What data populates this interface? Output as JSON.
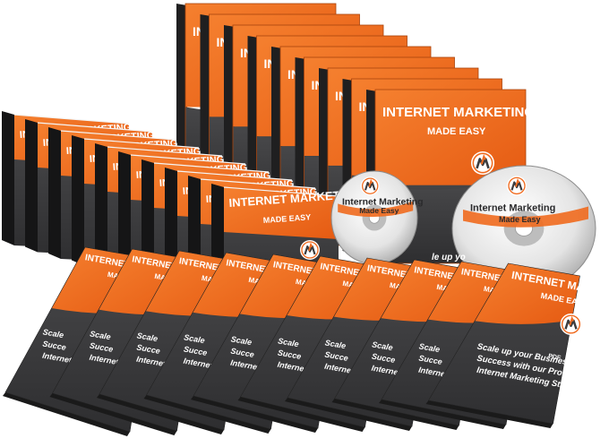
{
  "product": {
    "title": "INTERNET MARKETING",
    "subtitle": "MADE EASY",
    "disc_title": "Internet Marketing",
    "disc_subtitle": "Made Easy",
    "tagline_lines": [
      "Scale up your Business",
      "Success with our Proven",
      "Internet Marketing Strategies"
    ],
    "partial_tagline_lines": [
      "Scale",
      "Succe",
      "Internet"
    ],
    "disc_tagline_fragment": "le up yo",
    "format_badge": "PDF",
    "logo_letter": "M"
  },
  "counts": {
    "dvd_cases": 9,
    "cd_cases": 10,
    "report_covers": 10
  },
  "colors": {
    "orange": "#f06a1e",
    "orange_dark": "#c04f10",
    "charcoal": "#3c3c3e",
    "charcoal_dark": "#262628",
    "disc_silver": "#d9d9d9",
    "white": "#ffffff"
  }
}
